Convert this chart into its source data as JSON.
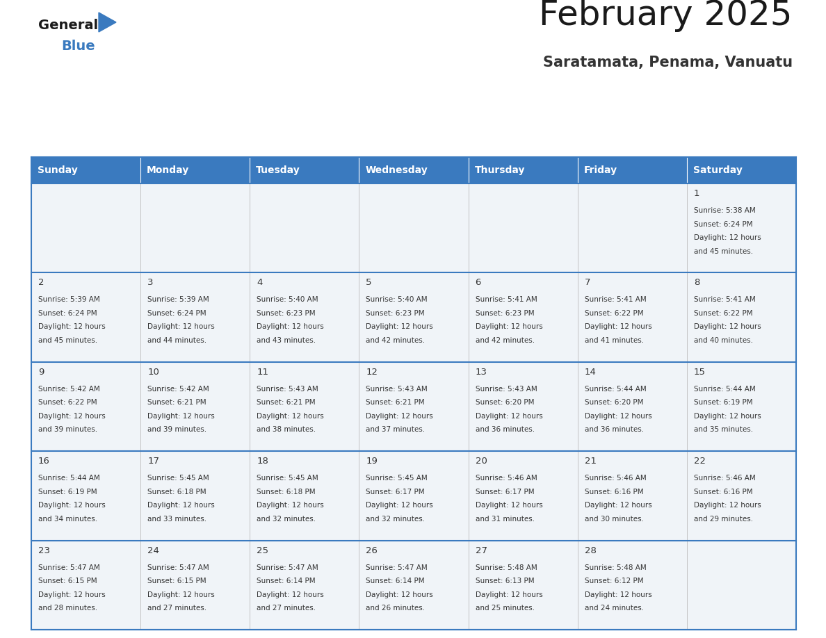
{
  "title": "February 2025",
  "subtitle": "Saratamata, Penama, Vanuatu",
  "header_color": "#3a7abf",
  "header_text_color": "#ffffff",
  "cell_bg_color": "#f0f4f8",
  "border_color": "#3a7abf",
  "day_headers": [
    "Sunday",
    "Monday",
    "Tuesday",
    "Wednesday",
    "Thursday",
    "Friday",
    "Saturday"
  ],
  "calendar": [
    [
      null,
      null,
      null,
      null,
      null,
      null,
      {
        "day": 1,
        "sunrise": "5:38 AM",
        "sunset": "6:24 PM",
        "daylight": "12 hours and 45 minutes."
      }
    ],
    [
      {
        "day": 2,
        "sunrise": "5:39 AM",
        "sunset": "6:24 PM",
        "daylight": "12 hours and 45 minutes."
      },
      {
        "day": 3,
        "sunrise": "5:39 AM",
        "sunset": "6:24 PM",
        "daylight": "12 hours and 44 minutes."
      },
      {
        "day": 4,
        "sunrise": "5:40 AM",
        "sunset": "6:23 PM",
        "daylight": "12 hours and 43 minutes."
      },
      {
        "day": 5,
        "sunrise": "5:40 AM",
        "sunset": "6:23 PM",
        "daylight": "12 hours and 42 minutes."
      },
      {
        "day": 6,
        "sunrise": "5:41 AM",
        "sunset": "6:23 PM",
        "daylight": "12 hours and 42 minutes."
      },
      {
        "day": 7,
        "sunrise": "5:41 AM",
        "sunset": "6:22 PM",
        "daylight": "12 hours and 41 minutes."
      },
      {
        "day": 8,
        "sunrise": "5:41 AM",
        "sunset": "6:22 PM",
        "daylight": "12 hours and 40 minutes."
      }
    ],
    [
      {
        "day": 9,
        "sunrise": "5:42 AM",
        "sunset": "6:22 PM",
        "daylight": "12 hours and 39 minutes."
      },
      {
        "day": 10,
        "sunrise": "5:42 AM",
        "sunset": "6:21 PM",
        "daylight": "12 hours and 39 minutes."
      },
      {
        "day": 11,
        "sunrise": "5:43 AM",
        "sunset": "6:21 PM",
        "daylight": "12 hours and 38 minutes."
      },
      {
        "day": 12,
        "sunrise": "5:43 AM",
        "sunset": "6:21 PM",
        "daylight": "12 hours and 37 minutes."
      },
      {
        "day": 13,
        "sunrise": "5:43 AM",
        "sunset": "6:20 PM",
        "daylight": "12 hours and 36 minutes."
      },
      {
        "day": 14,
        "sunrise": "5:44 AM",
        "sunset": "6:20 PM",
        "daylight": "12 hours and 36 minutes."
      },
      {
        "day": 15,
        "sunrise": "5:44 AM",
        "sunset": "6:19 PM",
        "daylight": "12 hours and 35 minutes."
      }
    ],
    [
      {
        "day": 16,
        "sunrise": "5:44 AM",
        "sunset": "6:19 PM",
        "daylight": "12 hours and 34 minutes."
      },
      {
        "day": 17,
        "sunrise": "5:45 AM",
        "sunset": "6:18 PM",
        "daylight": "12 hours and 33 minutes."
      },
      {
        "day": 18,
        "sunrise": "5:45 AM",
        "sunset": "6:18 PM",
        "daylight": "12 hours and 32 minutes."
      },
      {
        "day": 19,
        "sunrise": "5:45 AM",
        "sunset": "6:17 PM",
        "daylight": "12 hours and 32 minutes."
      },
      {
        "day": 20,
        "sunrise": "5:46 AM",
        "sunset": "6:17 PM",
        "daylight": "12 hours and 31 minutes."
      },
      {
        "day": 21,
        "sunrise": "5:46 AM",
        "sunset": "6:16 PM",
        "daylight": "12 hours and 30 minutes."
      },
      {
        "day": 22,
        "sunrise": "5:46 AM",
        "sunset": "6:16 PM",
        "daylight": "12 hours and 29 minutes."
      }
    ],
    [
      {
        "day": 23,
        "sunrise": "5:47 AM",
        "sunset": "6:15 PM",
        "daylight": "12 hours and 28 minutes."
      },
      {
        "day": 24,
        "sunrise": "5:47 AM",
        "sunset": "6:15 PM",
        "daylight": "12 hours and 27 minutes."
      },
      {
        "day": 25,
        "sunrise": "5:47 AM",
        "sunset": "6:14 PM",
        "daylight": "12 hours and 27 minutes."
      },
      {
        "day": 26,
        "sunrise": "5:47 AM",
        "sunset": "6:14 PM",
        "daylight": "12 hours and 26 minutes."
      },
      {
        "day": 27,
        "sunrise": "5:48 AM",
        "sunset": "6:13 PM",
        "daylight": "12 hours and 25 minutes."
      },
      {
        "day": 28,
        "sunrise": "5:48 AM",
        "sunset": "6:12 PM",
        "daylight": "12 hours and 24 minutes."
      },
      null
    ]
  ]
}
